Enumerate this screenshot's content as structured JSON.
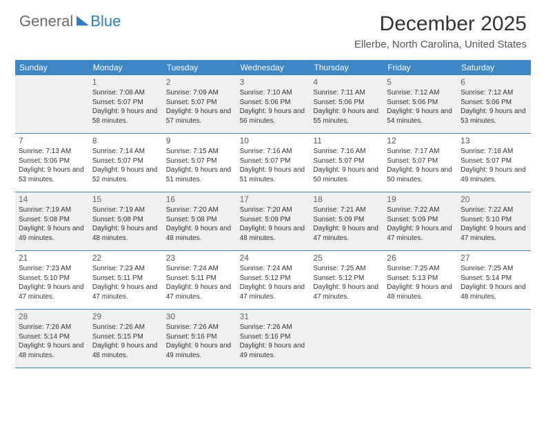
{
  "branding": {
    "word1": "General",
    "word2": "Blue",
    "color_gray": "#6b6b6b",
    "color_blue": "#2f7fc2"
  },
  "title": "December 2025",
  "location": "Ellerbe, North Carolina, United States",
  "theme": {
    "header_bg": "#3d87c7",
    "header_text": "#ffffff",
    "cell_border": "#3d87c7",
    "shaded_bg": "#f0f0f0",
    "page_bg": "#ffffff"
  },
  "day_headers": [
    "Sunday",
    "Monday",
    "Tuesday",
    "Wednesday",
    "Thursday",
    "Friday",
    "Saturday"
  ],
  "weeks": [
    [
      {
        "num": "",
        "sunrise": "",
        "sunset": "",
        "daylight": ""
      },
      {
        "num": "1",
        "sunrise": "Sunrise: 7:08 AM",
        "sunset": "Sunset: 5:07 PM",
        "daylight": "Daylight: 9 hours and 58 minutes."
      },
      {
        "num": "2",
        "sunrise": "Sunrise: 7:09 AM",
        "sunset": "Sunset: 5:07 PM",
        "daylight": "Daylight: 9 hours and 57 minutes."
      },
      {
        "num": "3",
        "sunrise": "Sunrise: 7:10 AM",
        "sunset": "Sunset: 5:06 PM",
        "daylight": "Daylight: 9 hours and 56 minutes."
      },
      {
        "num": "4",
        "sunrise": "Sunrise: 7:11 AM",
        "sunset": "Sunset: 5:06 PM",
        "daylight": "Daylight: 9 hours and 55 minutes."
      },
      {
        "num": "5",
        "sunrise": "Sunrise: 7:12 AM",
        "sunset": "Sunset: 5:06 PM",
        "daylight": "Daylight: 9 hours and 54 minutes."
      },
      {
        "num": "6",
        "sunrise": "Sunrise: 7:12 AM",
        "sunset": "Sunset: 5:06 PM",
        "daylight": "Daylight: 9 hours and 53 minutes."
      }
    ],
    [
      {
        "num": "7",
        "sunrise": "Sunrise: 7:13 AM",
        "sunset": "Sunset: 5:06 PM",
        "daylight": "Daylight: 9 hours and 53 minutes."
      },
      {
        "num": "8",
        "sunrise": "Sunrise: 7:14 AM",
        "sunset": "Sunset: 5:07 PM",
        "daylight": "Daylight: 9 hours and 52 minutes."
      },
      {
        "num": "9",
        "sunrise": "Sunrise: 7:15 AM",
        "sunset": "Sunset: 5:07 PM",
        "daylight": "Daylight: 9 hours and 51 minutes."
      },
      {
        "num": "10",
        "sunrise": "Sunrise: 7:16 AM",
        "sunset": "Sunset: 5:07 PM",
        "daylight": "Daylight: 9 hours and 51 minutes."
      },
      {
        "num": "11",
        "sunrise": "Sunrise: 7:16 AM",
        "sunset": "Sunset: 5:07 PM",
        "daylight": "Daylight: 9 hours and 50 minutes."
      },
      {
        "num": "12",
        "sunrise": "Sunrise: 7:17 AM",
        "sunset": "Sunset: 5:07 PM",
        "daylight": "Daylight: 9 hours and 50 minutes."
      },
      {
        "num": "13",
        "sunrise": "Sunrise: 7:18 AM",
        "sunset": "Sunset: 5:07 PM",
        "daylight": "Daylight: 9 hours and 49 minutes."
      }
    ],
    [
      {
        "num": "14",
        "sunrise": "Sunrise: 7:19 AM",
        "sunset": "Sunset: 5:08 PM",
        "daylight": "Daylight: 9 hours and 49 minutes."
      },
      {
        "num": "15",
        "sunrise": "Sunrise: 7:19 AM",
        "sunset": "Sunset: 5:08 PM",
        "daylight": "Daylight: 9 hours and 48 minutes."
      },
      {
        "num": "16",
        "sunrise": "Sunrise: 7:20 AM",
        "sunset": "Sunset: 5:08 PM",
        "daylight": "Daylight: 9 hours and 48 minutes."
      },
      {
        "num": "17",
        "sunrise": "Sunrise: 7:20 AM",
        "sunset": "Sunset: 5:09 PM",
        "daylight": "Daylight: 9 hours and 48 minutes."
      },
      {
        "num": "18",
        "sunrise": "Sunrise: 7:21 AM",
        "sunset": "Sunset: 5:09 PM",
        "daylight": "Daylight: 9 hours and 47 minutes."
      },
      {
        "num": "19",
        "sunrise": "Sunrise: 7:22 AM",
        "sunset": "Sunset: 5:09 PM",
        "daylight": "Daylight: 9 hours and 47 minutes."
      },
      {
        "num": "20",
        "sunrise": "Sunrise: 7:22 AM",
        "sunset": "Sunset: 5:10 PM",
        "daylight": "Daylight: 9 hours and 47 minutes."
      }
    ],
    [
      {
        "num": "21",
        "sunrise": "Sunrise: 7:23 AM",
        "sunset": "Sunset: 5:10 PM",
        "daylight": "Daylight: 9 hours and 47 minutes."
      },
      {
        "num": "22",
        "sunrise": "Sunrise: 7:23 AM",
        "sunset": "Sunset: 5:11 PM",
        "daylight": "Daylight: 9 hours and 47 minutes."
      },
      {
        "num": "23",
        "sunrise": "Sunrise: 7:24 AM",
        "sunset": "Sunset: 5:11 PM",
        "daylight": "Daylight: 9 hours and 47 minutes."
      },
      {
        "num": "24",
        "sunrise": "Sunrise: 7:24 AM",
        "sunset": "Sunset: 5:12 PM",
        "daylight": "Daylight: 9 hours and 47 minutes."
      },
      {
        "num": "25",
        "sunrise": "Sunrise: 7:25 AM",
        "sunset": "Sunset: 5:12 PM",
        "daylight": "Daylight: 9 hours and 47 minutes."
      },
      {
        "num": "26",
        "sunrise": "Sunrise: 7:25 AM",
        "sunset": "Sunset: 5:13 PM",
        "daylight": "Daylight: 9 hours and 48 minutes."
      },
      {
        "num": "27",
        "sunrise": "Sunrise: 7:25 AM",
        "sunset": "Sunset: 5:14 PM",
        "daylight": "Daylight: 9 hours and 48 minutes."
      }
    ],
    [
      {
        "num": "28",
        "sunrise": "Sunrise: 7:26 AM",
        "sunset": "Sunset: 5:14 PM",
        "daylight": "Daylight: 9 hours and 48 minutes."
      },
      {
        "num": "29",
        "sunrise": "Sunrise: 7:26 AM",
        "sunset": "Sunset: 5:15 PM",
        "daylight": "Daylight: 9 hours and 48 minutes."
      },
      {
        "num": "30",
        "sunrise": "Sunrise: 7:26 AM",
        "sunset": "Sunset: 5:16 PM",
        "daylight": "Daylight: 9 hours and 49 minutes."
      },
      {
        "num": "31",
        "sunrise": "Sunrise: 7:26 AM",
        "sunset": "Sunset: 5:16 PM",
        "daylight": "Daylight: 9 hours and 49 minutes."
      },
      {
        "num": "",
        "sunrise": "",
        "sunset": "",
        "daylight": ""
      },
      {
        "num": "",
        "sunrise": "",
        "sunset": "",
        "daylight": ""
      },
      {
        "num": "",
        "sunrise": "",
        "sunset": "",
        "daylight": ""
      }
    ]
  ]
}
